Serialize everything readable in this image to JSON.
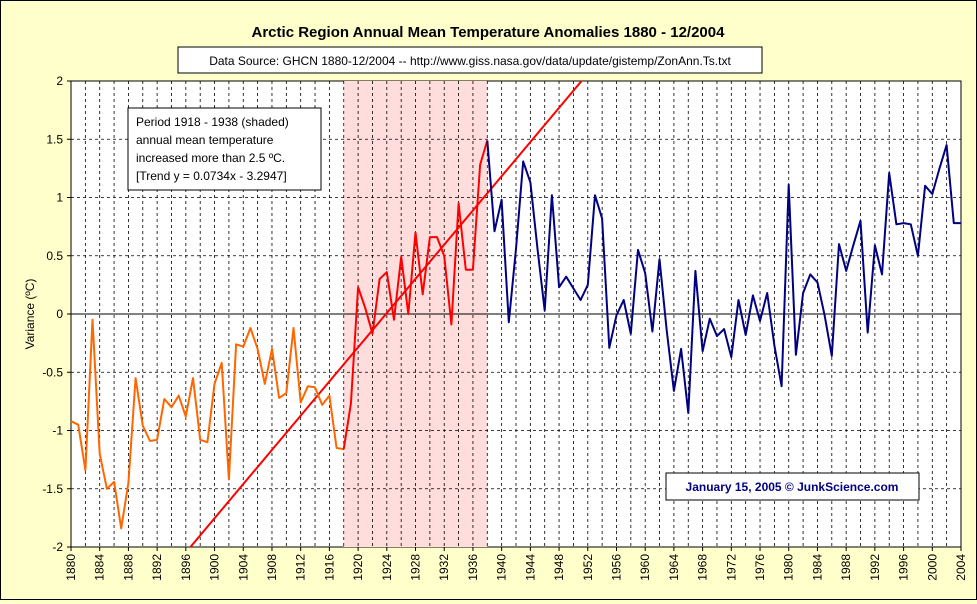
{
  "chart_data": {
    "type": "line",
    "title": "Arctic Region Annual Mean Temperature Anomalies 1880 - 12/2004",
    "subtitle": "Data Source: GHCN 1880-12/2004 -- http://www.giss.nasa.gov/data/update/gistemp/ZonAnn.Ts.txt",
    "xlabel": "",
    "ylabel": "Variance (ºC)",
    "xlim": [
      1880,
      2004
    ],
    "ylim": [
      -2,
      2
    ],
    "y_ticks": [
      "2",
      "1.5",
      "1",
      "0.5",
      "0",
      "-0.5",
      "-1",
      "-1.5",
      "-2"
    ],
    "x_ticks": [
      "1880",
      "1884",
      "1888",
      "1892",
      "1896",
      "1900",
      "1904",
      "1908",
      "1912",
      "1916",
      "1920",
      "1924",
      "1928",
      "1932",
      "1936",
      "1940",
      "1944",
      "1948",
      "1952",
      "1956",
      "1960",
      "1964",
      "1968",
      "1972",
      "1976",
      "1980",
      "1984",
      "1988",
      "1992",
      "1996",
      "2000",
      "2004"
    ],
    "grid": true,
    "shaded_period": [
      1918,
      1938
    ],
    "annotation": [
      "Period 1918 - 1938 (shaded)",
      "annual mean temperature",
      "increased more than 2.5 ºC.",
      "[Trend y = 0.0734x - 3.2947]"
    ],
    "credit": "January 15, 2005 © JunkScience.com",
    "colors": {
      "background": "#ffffcc",
      "plot_background": "#ffffff",
      "shade": "#ffdddd",
      "series_1880_1917": "#ff6600",
      "series_1918_1938": "#ff0000",
      "series_1938_2004": "#000080",
      "trend": "#ff0000",
      "credit_text": "#000080"
    },
    "trend": {
      "slope": 0.0734,
      "intercept": -3.2947,
      "origin_year": 1880
    },
    "series": [
      {
        "x": [
          1880,
          1881,
          1882,
          1883,
          1884,
          1885,
          1886,
          1887,
          1888,
          1889,
          1890,
          1891,
          1892,
          1893,
          1894,
          1895,
          1896,
          1897,
          1898,
          1899,
          1900,
          1901,
          1902,
          1903,
          1904,
          1905,
          1906,
          1907,
          1908,
          1909,
          1910,
          1911,
          1912,
          1913,
          1914,
          1915,
          1916,
          1917,
          1918
        ],
        "values": [
          -0.92,
          -0.95,
          -1.34,
          -0.05,
          -1.2,
          -1.5,
          -1.44,
          -1.84,
          -1.45,
          -0.55,
          -0.96,
          -1.09,
          -1.08,
          -0.73,
          -0.8,
          -0.7,
          -0.88,
          -0.55,
          -1.08,
          -1.1,
          -0.6,
          -0.42,
          -1.42,
          -0.26,
          -0.28,
          -0.12,
          -0.3,
          -0.6,
          -0.3,
          -0.72,
          -0.68,
          -0.12,
          -0.76,
          -0.62,
          -0.63,
          -0.78,
          -0.7,
          -1.15,
          -1.16
        ]
      },
      {
        "x": [
          1918,
          1919,
          1920,
          1921,
          1922,
          1923,
          1924,
          1925,
          1926,
          1927,
          1928,
          1929,
          1930,
          1931,
          1932,
          1933,
          1934,
          1935,
          1936,
          1937,
          1938
        ],
        "values": [
          -1.16,
          -0.77,
          0.23,
          0.05,
          -0.17,
          0.3,
          0.36,
          -0.05,
          0.49,
          0.0,
          0.7,
          0.17,
          0.66,
          0.66,
          0.5,
          -0.09,
          0.95,
          0.38,
          0.38,
          1.28,
          1.49
        ]
      },
      {
        "x": [
          1938,
          1939,
          1940,
          1941,
          1942,
          1943,
          1944,
          1945,
          1946,
          1947,
          1948,
          1949,
          1950,
          1951,
          1952,
          1953,
          1954,
          1955,
          1956,
          1957,
          1958,
          1959,
          1960,
          1961,
          1962,
          1963,
          1964,
          1965,
          1966,
          1967,
          1968,
          1969,
          1970,
          1971,
          1972,
          1973,
          1974,
          1975,
          1976,
          1977,
          1978,
          1979,
          1980,
          1981,
          1982,
          1983,
          1984,
          1985,
          1986,
          1987,
          1988,
          1989,
          1990,
          1991,
          1992,
          1993,
          1994,
          1995,
          1996,
          1997,
          1998,
          1999,
          2000,
          2001,
          2002,
          2003,
          2004
        ],
        "values": [
          1.49,
          0.71,
          0.98,
          -0.07,
          0.56,
          1.31,
          1.13,
          0.56,
          0.03,
          1.02,
          0.23,
          0.32,
          0.22,
          0.12,
          0.25,
          1.02,
          0.82,
          -0.29,
          -0.01,
          0.12,
          -0.17,
          0.55,
          0.35,
          -0.15,
          0.47,
          -0.14,
          -0.66,
          -0.3,
          -0.85,
          0.37,
          -0.32,
          -0.04,
          -0.19,
          -0.13,
          -0.37,
          0.12,
          -0.18,
          0.16,
          -0.06,
          0.18,
          -0.27,
          -0.62,
          1.11,
          -0.35,
          0.18,
          0.34,
          0.27,
          -0.01,
          -0.36,
          0.6,
          0.37,
          0.59,
          0.8,
          -0.16,
          0.59,
          0.34,
          1.21,
          0.77,
          0.78,
          0.77,
          0.5,
          1.1,
          1.03,
          1.25,
          1.45,
          0.78,
          0.78
        ]
      }
    ]
  }
}
